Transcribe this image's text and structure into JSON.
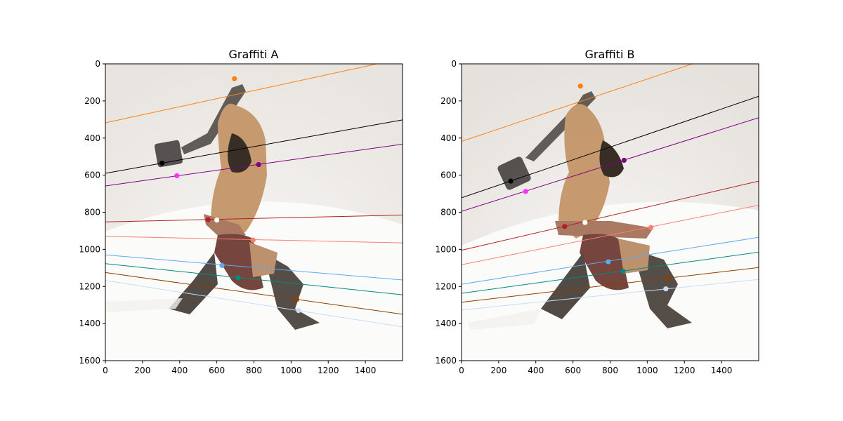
{
  "chart_data": [
    {
      "type": "scatter",
      "title": "Graffiti A",
      "xlim": [
        0,
        1600
      ],
      "ylim": [
        1600,
        0
      ],
      "xticks": [
        0,
        200,
        400,
        600,
        800,
        1000,
        1200,
        1400
      ],
      "yticks": [
        0,
        200,
        400,
        600,
        800,
        1000,
        1200,
        1400,
        1600
      ],
      "points": [
        {
          "x": 695,
          "y": 80,
          "color": "#ff7f0e"
        },
        {
          "x": 305,
          "y": 535,
          "color": "#000000"
        },
        {
          "x": 825,
          "y": 543,
          "color": "#800080"
        },
        {
          "x": 385,
          "y": 603,
          "color": "#ff33ff"
        },
        {
          "x": 553,
          "y": 840,
          "color": "#b22222"
        },
        {
          "x": 600,
          "y": 842,
          "color": "#ffffff"
        },
        {
          "x": 795,
          "y": 950,
          "color": "#fa8072"
        },
        {
          "x": 628,
          "y": 1087,
          "color": "#5fa8f0"
        },
        {
          "x": 715,
          "y": 1153,
          "color": "#008b80"
        },
        {
          "x": 1030,
          "y": 1270,
          "color": "#8b4000"
        },
        {
          "x": 1040,
          "y": 1330,
          "color": "#c6defa"
        }
      ],
      "lines": [
        {
          "y0": 318,
          "y1": -30,
          "color": "#ff7f0e"
        },
        {
          "y0": 590,
          "y1": 302,
          "color": "#000000"
        },
        {
          "y0": 658,
          "y1": 433,
          "color": "#800080"
        },
        {
          "y0": 852,
          "y1": 815,
          "color": "#b22222"
        },
        {
          "y0": 930,
          "y1": 965,
          "color": "#fa8072"
        },
        {
          "y0": 1030,
          "y1": 1165,
          "color": "#5fa8f0"
        },
        {
          "y0": 1077,
          "y1": 1245,
          "color": "#008b80"
        },
        {
          "y0": 1125,
          "y1": 1350,
          "color": "#8b4000"
        },
        {
          "y0": 1168,
          "y1": 1418,
          "color": "#c6defa"
        }
      ]
    },
    {
      "type": "scatter",
      "title": "Graffiti B",
      "xlim": [
        0,
        1600
      ],
      "ylim": [
        1600,
        0
      ],
      "xticks": [
        0,
        200,
        400,
        600,
        800,
        1000,
        1200,
        1400
      ],
      "yticks": [
        0,
        200,
        400,
        600,
        800,
        1000,
        1200,
        1400,
        1600
      ],
      "points": [
        {
          "x": 640,
          "y": 120,
          "color": "#ff7f0e"
        },
        {
          "x": 265,
          "y": 632,
          "color": "#000000"
        },
        {
          "x": 875,
          "y": 520,
          "color": "#800080"
        },
        {
          "x": 345,
          "y": 688,
          "color": "#ff33ff"
        },
        {
          "x": 555,
          "y": 877,
          "color": "#b22222"
        },
        {
          "x": 665,
          "y": 855,
          "color": "#ffffff"
        },
        {
          "x": 1020,
          "y": 882,
          "color": "#fa8072"
        },
        {
          "x": 790,
          "y": 1067,
          "color": "#5fa8f0"
        },
        {
          "x": 870,
          "y": 1118,
          "color": "#008b80"
        },
        {
          "x": 1110,
          "y": 1155,
          "color": "#8b4000"
        },
        {
          "x": 1100,
          "y": 1213,
          "color": "#c6defa"
        }
      ],
      "lines": [
        {
          "y0": 418,
          "y1": -120,
          "color": "#ff7f0e"
        },
        {
          "y0": 722,
          "y1": 175,
          "color": "#000000"
        },
        {
          "y0": 795,
          "y1": 290,
          "color": "#800080"
        },
        {
          "y0": 1005,
          "y1": 632,
          "color": "#b22222"
        },
        {
          "y0": 1083,
          "y1": 762,
          "color": "#fa8072"
        },
        {
          "y0": 1188,
          "y1": 935,
          "color": "#5fa8f0"
        },
        {
          "y0": 1237,
          "y1": 1015,
          "color": "#008b80"
        },
        {
          "y0": 1285,
          "y1": 1098,
          "color": "#8b4000"
        },
        {
          "y0": 1327,
          "y1": 1162,
          "color": "#c6defa"
        }
      ]
    }
  ]
}
